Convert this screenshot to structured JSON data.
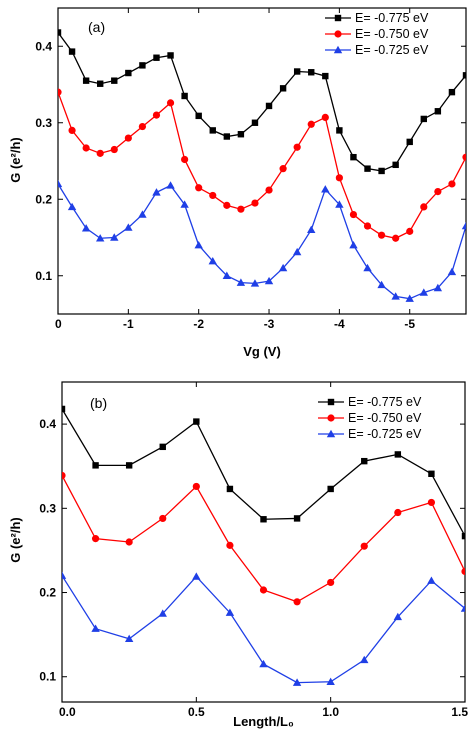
{
  "chart_data": [
    {
      "type": "line",
      "panel_label": "(a)",
      "xlabel": "Vg (V)",
      "ylabel": "G (e²/h)",
      "xlim": [
        0,
        -5.8
      ],
      "ylim": [
        0.05,
        0.45
      ],
      "x_ticks": [
        "0",
        "-1",
        "-2",
        "-3",
        "-4",
        "-5"
      ],
      "y_ticks": [
        "0.1",
        "0.2",
        "0.3",
        "0.4"
      ],
      "legend_position": "top-right",
      "series": [
        {
          "name": "E= -0.775 eV",
          "color": "#000000",
          "marker": "square",
          "x": [
            0,
            -0.2,
            -0.4,
            -0.6,
            -0.8,
            -1.0,
            -1.2,
            -1.4,
            -1.6,
            -1.8,
            -2.0,
            -2.2,
            -2.4,
            -2.6,
            -2.8,
            -3.0,
            -3.2,
            -3.4,
            -3.6,
            -3.8,
            -4.0,
            -4.2,
            -4.4,
            -4.6,
            -4.8,
            -5.0,
            -5.2,
            -5.4,
            -5.6,
            -5.8
          ],
          "y": [
            0.418,
            0.393,
            0.355,
            0.351,
            0.355,
            0.365,
            0.375,
            0.385,
            0.388,
            0.335,
            0.309,
            0.29,
            0.282,
            0.285,
            0.3,
            0.322,
            0.345,
            0.367,
            0.366,
            0.361,
            0.29,
            0.255,
            0.24,
            0.237,
            0.245,
            0.275,
            0.305,
            0.315,
            0.34,
            0.362
          ]
        },
        {
          "name": "E= -0.750 eV",
          "color": "#ff0000",
          "marker": "circle",
          "x": [
            0,
            -0.2,
            -0.4,
            -0.6,
            -0.8,
            -1.0,
            -1.2,
            -1.4,
            -1.6,
            -1.8,
            -2.0,
            -2.2,
            -2.4,
            -2.6,
            -2.8,
            -3.0,
            -3.2,
            -3.4,
            -3.6,
            -3.8,
            -4.0,
            -4.2,
            -4.4,
            -4.6,
            -4.8,
            -5.0,
            -5.2,
            -5.4,
            -5.6,
            -5.8
          ],
          "y": [
            0.34,
            0.29,
            0.267,
            0.26,
            0.265,
            0.28,
            0.295,
            0.31,
            0.326,
            0.252,
            0.215,
            0.205,
            0.192,
            0.187,
            0.195,
            0.212,
            0.24,
            0.268,
            0.298,
            0.307,
            0.228,
            0.18,
            0.165,
            0.153,
            0.149,
            0.158,
            0.19,
            0.21,
            0.22,
            0.255
          ]
        },
        {
          "name": "E= -0.725 eV",
          "color": "#1f3fe6",
          "marker": "triangle",
          "x": [
            0,
            -0.2,
            -0.4,
            -0.6,
            -0.8,
            -1.0,
            -1.2,
            -1.4,
            -1.6,
            -1.8,
            -2.0,
            -2.2,
            -2.4,
            -2.6,
            -2.8,
            -3.0,
            -3.2,
            -3.4,
            -3.6,
            -3.8,
            -4.0,
            -4.2,
            -4.4,
            -4.6,
            -4.8,
            -5.0,
            -5.2,
            -5.4,
            -5.6,
            -5.8
          ],
          "y": [
            0.22,
            0.19,
            0.162,
            0.149,
            0.15,
            0.163,
            0.18,
            0.209,
            0.218,
            0.193,
            0.14,
            0.119,
            0.1,
            0.091,
            0.09,
            0.093,
            0.11,
            0.131,
            0.16,
            0.213,
            0.193,
            0.14,
            0.11,
            0.088,
            0.073,
            0.07,
            0.078,
            0.084,
            0.105,
            0.165
          ]
        }
      ]
    },
    {
      "type": "line",
      "panel_label": "(b)",
      "xlabel": "Length/L₀",
      "ylabel": "G (e²/h)",
      "xlim": [
        0,
        1.5
      ],
      "ylim": [
        0.07,
        0.45
      ],
      "x_ticks": [
        "0.0",
        "0.5",
        "1.0",
        "1.5"
      ],
      "y_ticks": [
        "0.1",
        "0.2",
        "0.3",
        "0.4"
      ],
      "legend_position": "top-right",
      "series": [
        {
          "name": "E= -0.775 eV",
          "color": "#000000",
          "marker": "square",
          "x": [
            0,
            0.125,
            0.25,
            0.375,
            0.5,
            0.625,
            0.75,
            0.875,
            1.0,
            1.125,
            1.25,
            1.375,
            1.5
          ],
          "y": [
            0.418,
            0.351,
            0.351,
            0.373,
            0.403,
            0.323,
            0.287,
            0.288,
            0.323,
            0.356,
            0.364,
            0.341,
            0.267
          ]
        },
        {
          "name": "E= -0.750 eV",
          "color": "#ff0000",
          "marker": "circle",
          "x": [
            0,
            0.125,
            0.25,
            0.375,
            0.5,
            0.625,
            0.75,
            0.875,
            1.0,
            1.125,
            1.25,
            1.375,
            1.5
          ],
          "y": [
            0.339,
            0.264,
            0.26,
            0.288,
            0.326,
            0.256,
            0.203,
            0.189,
            0.212,
            0.255,
            0.295,
            0.307,
            0.225
          ]
        },
        {
          "name": "E= -0.725 eV",
          "color": "#1f3fe6",
          "marker": "triangle",
          "x": [
            0,
            0.125,
            0.25,
            0.375,
            0.5,
            0.625,
            0.75,
            0.875,
            1.0,
            1.125,
            1.25,
            1.375,
            1.5
          ],
          "y": [
            0.22,
            0.157,
            0.145,
            0.175,
            0.219,
            0.176,
            0.115,
            0.093,
            0.094,
            0.12,
            0.171,
            0.214,
            0.181
          ]
        }
      ]
    }
  ]
}
